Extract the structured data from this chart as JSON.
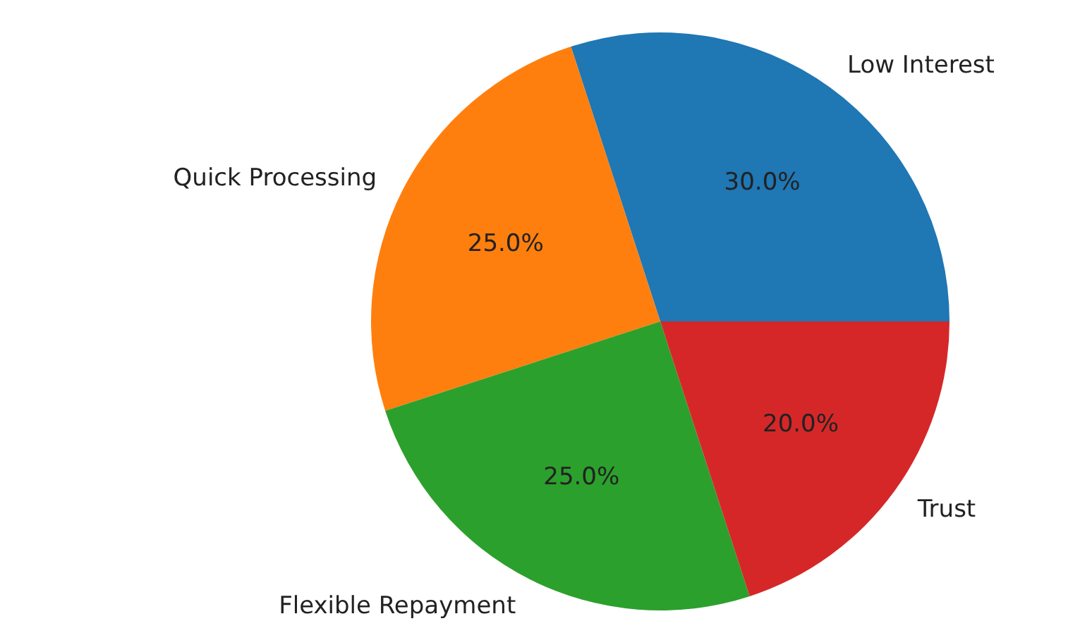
{
  "chart_data": {
    "type": "pie",
    "categories": [
      "Low Interest",
      "Quick Processing",
      "Flexible Repayment",
      "Trust"
    ],
    "values": [
      30,
      25,
      25,
      20
    ],
    "colors": [
      "#1f77b4",
      "#ff7f0e",
      "#2ca02c",
      "#d62728"
    ],
    "value_labels": [
      "30.0%",
      "25.0%",
      "25.0%",
      "20.0%"
    ]
  }
}
